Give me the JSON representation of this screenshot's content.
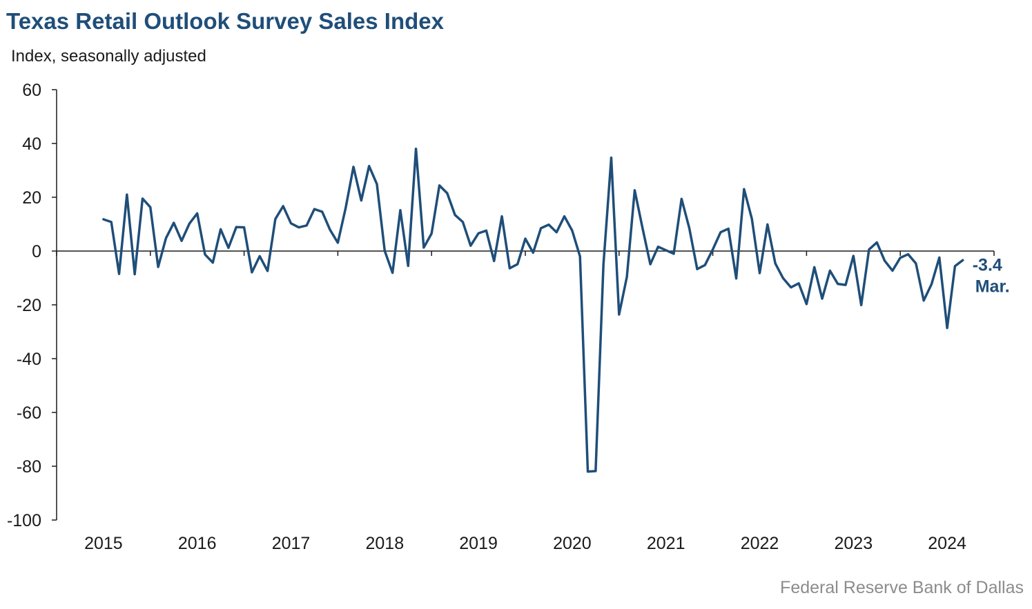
{
  "title": "Texas Retail Outlook Survey Sales Index",
  "subtitle": "Index, seasonally adjusted",
  "source": "Federal Reserve Bank of Dallas",
  "colors": {
    "title": "#1f4e79",
    "series": "#1f4e79",
    "axis": "#1a1a1a",
    "source": "#8c8c8c"
  },
  "chart_data": {
    "type": "line",
    "title": "Texas Retail Outlook Survey Sales Index",
    "ylabel": "Index, seasonally adjusted",
    "xlabel": "",
    "ylim": [
      -100,
      60
    ],
    "y_ticks": [
      60,
      40,
      20,
      0,
      -20,
      -40,
      -60,
      -80,
      -100
    ],
    "x_ticks": [
      "2015",
      "2016",
      "2017",
      "2018",
      "2019",
      "2020",
      "2021",
      "2022",
      "2023",
      "2024"
    ],
    "grid": false,
    "x_start": "2015-01",
    "x_end": "2024-03",
    "annotation": {
      "value_label": "-3.4",
      "month_label": "Mar."
    },
    "series": [
      {
        "values": [
          11.8,
          10.8,
          -8.5,
          21.0,
          -8.6,
          19.5,
          16.3,
          -5.9,
          4.8,
          10.5,
          3.8,
          10.2,
          14.0,
          -1.3,
          -4.3,
          8.1,
          1.2,
          8.9,
          8.8,
          -7.9,
          -1.9,
          -7.4,
          11.9,
          16.7,
          10.3,
          8.8,
          9.5,
          15.6,
          14.6,
          7.9,
          3.1,
          16.0,
          31.3,
          18.8,
          31.6,
          24.9,
          0.1,
          -8.1,
          15.2,
          -5.5,
          38.0,
          1.3,
          6.5,
          24.4,
          21.5,
          13.4,
          10.8,
          2.0,
          6.6,
          7.6,
          -3.7,
          12.9,
          -6.4,
          -4.9,
          4.6,
          -0.6,
          8.5,
          9.8,
          7.0,
          12.9,
          7.6,
          -2.0,
          -82.0,
          -81.8,
          -5.0,
          34.7,
          -23.6,
          -9.6,
          22.6,
          8.6,
          -4.9,
          1.6,
          0.3,
          -1.0,
          19.4,
          8.4,
          -6.7,
          -5.2,
          0.6,
          7.0,
          8.3,
          -10.2,
          23.0,
          12.0,
          -8.2,
          9.9,
          -4.6,
          -10.1,
          -13.5,
          -12.0,
          -19.7,
          -6.0,
          -17.7,
          -7.3,
          -12.2,
          -12.6,
          -1.8,
          -20.1,
          0.6,
          3.2,
          -3.6,
          -7.3,
          -2.5,
          -1.2,
          -4.6,
          -18.4,
          -12.3,
          -2.4,
          -28.6,
          -5.6,
          -3.4
        ]
      }
    ]
  }
}
